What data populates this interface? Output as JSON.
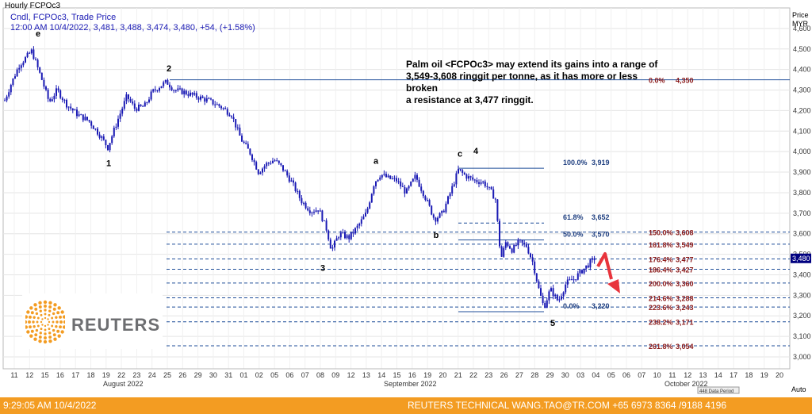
{
  "header": {
    "title": "Hourly FCPOc3",
    "series_line": "Cndl, FCPOc3, Trade Price",
    "ohlc_line": "12:00 AM 10/4/2022, 3,481, 3,488, 3,474, 3,480, +54, (+1.58%)"
  },
  "axis": {
    "price_label": "Price",
    "currency_label": "MYR",
    "auto_label": "Auto"
  },
  "annotation": "Palm oil <FCPOc3> may extend its gains into a range of\n3,549-3,608 ringgit per tonne, as it has more or less broken\n a resistance at 3,477 ringgit.",
  "logo": {
    "text": "REUTERS"
  },
  "footer": {
    "left": "9:29:05 AM 10/4/2022",
    "right": "REUTERS TECHNICAL  WANG.TAO@TR.COM  +65 6973 8364 /9188 4196"
  },
  "colors": {
    "candle": "#1a1ab4",
    "level_line": "#1f4e99",
    "ext_text": "#8b1a1a",
    "retr_text": "#1f3f80",
    "arrow": "#e8343c",
    "footer_bg": "#f39c22",
    "price_box": "#000080"
  },
  "chart_data": {
    "type": "candlestick",
    "title": "Hourly FCPOc3",
    "ylabel": "Price MYR",
    "ylim": [
      3000,
      4700
    ],
    "y_ticks": [
      3000,
      3100,
      3200,
      3300,
      3400,
      3500,
      3600,
      3700,
      3800,
      3900,
      4000,
      4100,
      4200,
      4300,
      4400,
      4500,
      4600
    ],
    "y_tick_labels": [
      "3,000",
      "3,100",
      "3,200",
      "3,300",
      "3,400",
      "3,500",
      "3,600",
      "3,700",
      "3,800",
      "3,900",
      "4,000",
      "4,100",
      "4,200",
      "4,300",
      "4,400",
      "4,500",
      "4,600"
    ],
    "x_day_labels": [
      "11",
      "12",
      "15",
      "16",
      "17",
      "18",
      "19",
      "22",
      "23",
      "24",
      "25",
      "26",
      "29",
      "30",
      "31",
      "01",
      "02",
      "05",
      "06",
      "07",
      "08",
      "09",
      "12",
      "13",
      "14",
      "15",
      "16",
      "19",
      "20",
      "21",
      "22",
      "23",
      "26",
      "27",
      "28",
      "29",
      "30",
      "03",
      "04",
      "05",
      "06",
      "07",
      "10",
      "11",
      "12",
      "13",
      "14",
      "17",
      "18",
      "19",
      "20"
    ],
    "x_month_labels": [
      "August 2022",
      "September 2022",
      "October 2022"
    ],
    "last_price": 3480,
    "last_price_label": "3,480",
    "price_path": [
      [
        0,
        4160
      ],
      [
        6,
        4250
      ],
      [
        14,
        4330
      ],
      [
        24,
        4420
      ],
      [
        40,
        4490
      ],
      [
        52,
        4360
      ],
      [
        62,
        4240
      ],
      [
        72,
        4300
      ],
      [
        84,
        4230
      ],
      [
        98,
        4180
      ],
      [
        112,
        4150
      ],
      [
        126,
        4080
      ],
      [
        136,
        4020
      ],
      [
        148,
        4150
      ],
      [
        160,
        4270
      ],
      [
        170,
        4210
      ],
      [
        182,
        4220
      ],
      [
        192,
        4290
      ],
      [
        202,
        4320
      ],
      [
        210,
        4340
      ],
      [
        220,
        4300
      ],
      [
        232,
        4290
      ],
      [
        246,
        4270
      ],
      [
        262,
        4250
      ],
      [
        278,
        4220
      ],
      [
        292,
        4180
      ],
      [
        304,
        4060
      ],
      [
        316,
        3990
      ],
      [
        326,
        3900
      ],
      [
        336,
        3940
      ],
      [
        346,
        3960
      ],
      [
        356,
        3920
      ],
      [
        368,
        3850
      ],
      [
        380,
        3760
      ],
      [
        392,
        3710
      ],
      [
        402,
        3720
      ],
      [
        412,
        3620
      ],
      [
        418,
        3520
      ],
      [
        428,
        3600
      ],
      [
        440,
        3580
      ],
      [
        452,
        3640
      ],
      [
        462,
        3700
      ],
      [
        472,
        3850
      ],
      [
        480,
        3890
      ],
      [
        490,
        3870
      ],
      [
        500,
        3860
      ],
      [
        512,
        3800
      ],
      [
        524,
        3880
      ],
      [
        536,
        3780
      ],
      [
        548,
        3670
      ],
      [
        558,
        3700
      ],
      [
        568,
        3800
      ],
      [
        578,
        3910
      ],
      [
        588,
        3880
      ],
      [
        598,
        3860
      ],
      [
        610,
        3850
      ],
      [
        620,
        3800
      ],
      [
        626,
        3760
      ],
      [
        628,
        3610
      ],
      [
        632,
        3480
      ],
      [
        638,
        3560
      ],
      [
        646,
        3520
      ],
      [
        654,
        3560
      ],
      [
        664,
        3540
      ],
      [
        672,
        3460
      ],
      [
        680,
        3320
      ],
      [
        686,
        3240
      ],
      [
        694,
        3330
      ],
      [
        704,
        3270
      ],
      [
        714,
        3360
      ],
      [
        724,
        3380
      ],
      [
        734,
        3420
      ],
      [
        742,
        3450
      ],
      [
        750,
        3480
      ]
    ],
    "wave_labels": [
      {
        "label": "e",
        "price": 4560,
        "xi": 48
      },
      {
        "label": "2",
        "price": 4390,
        "xi": 213
      },
      {
        "label": "1",
        "price": 3930,
        "xi": 137
      },
      {
        "label": "a",
        "price": 3940,
        "xi": 474
      },
      {
        "label": "c",
        "price": 3975,
        "xi": 580
      },
      {
        "label": "4",
        "price": 3990,
        "xi": 600
      },
      {
        "label": "b",
        "price": 3580,
        "xi": 550
      },
      {
        "label": "3",
        "price": 3420,
        "xi": 407
      },
      {
        "label": "5",
        "price": 3150,
        "xi": 697
      }
    ],
    "retracement": [
      {
        "label": "100.0%",
        "value": 3919,
        "value_label": "3,919",
        "x0": 578,
        "x1": 686,
        "style": "solid"
      },
      {
        "label": "61.8%",
        "value": 3652,
        "value_label": "3,652",
        "x0": 578,
        "x1": 686,
        "style": "dashed"
      },
      {
        "label": "50.0%",
        "value": 3570,
        "value_label": "3,570",
        "x0": 578,
        "x1": 686,
        "style": "solid"
      },
      {
        "label": "0.0%",
        "value": 3220,
        "value_label": "3,220",
        "x0": 578,
        "x1": 686,
        "style": "solid"
      }
    ],
    "extensions": [
      {
        "label": "0.0%",
        "value": 4350,
        "value_label": "4,350",
        "style": "solid",
        "x0": 214
      },
      {
        "label": "150.0%",
        "value": 3608,
        "value_label": "3,608",
        "style": "dashed",
        "x0": 210
      },
      {
        "label": "161.8%",
        "value": 3549,
        "value_label": "3,549",
        "style": "dashed",
        "x0": 210
      },
      {
        "label": "176.4%",
        "value": 3477,
        "value_label": "3,477",
        "style": "dashed",
        "x0": 210
      },
      {
        "label": "186.4%",
        "value": 3427,
        "value_label": "3,427",
        "style": "dashed",
        "x0": 210
      },
      {
        "label": "200.0%",
        "value": 3360,
        "value_label": "3,360",
        "style": "dashed",
        "x0": 210
      },
      {
        "label": "214.6%",
        "value": 3288,
        "value_label": "3,288",
        "style": "dashed",
        "x0": 210
      },
      {
        "label": "223.6%",
        "value": 3243,
        "value_label": "3,243",
        "style": "dashed",
        "x0": 210
      },
      {
        "label": "238.2%",
        "value": 3171,
        "value_label": "3,171",
        "style": "dashed",
        "x0": 210
      },
      {
        "label": "261.8%",
        "value": 3054,
        "value_label": "3,054",
        "style": "dashed",
        "x0": 210
      }
    ],
    "legend_text": "448 Data Period"
  }
}
